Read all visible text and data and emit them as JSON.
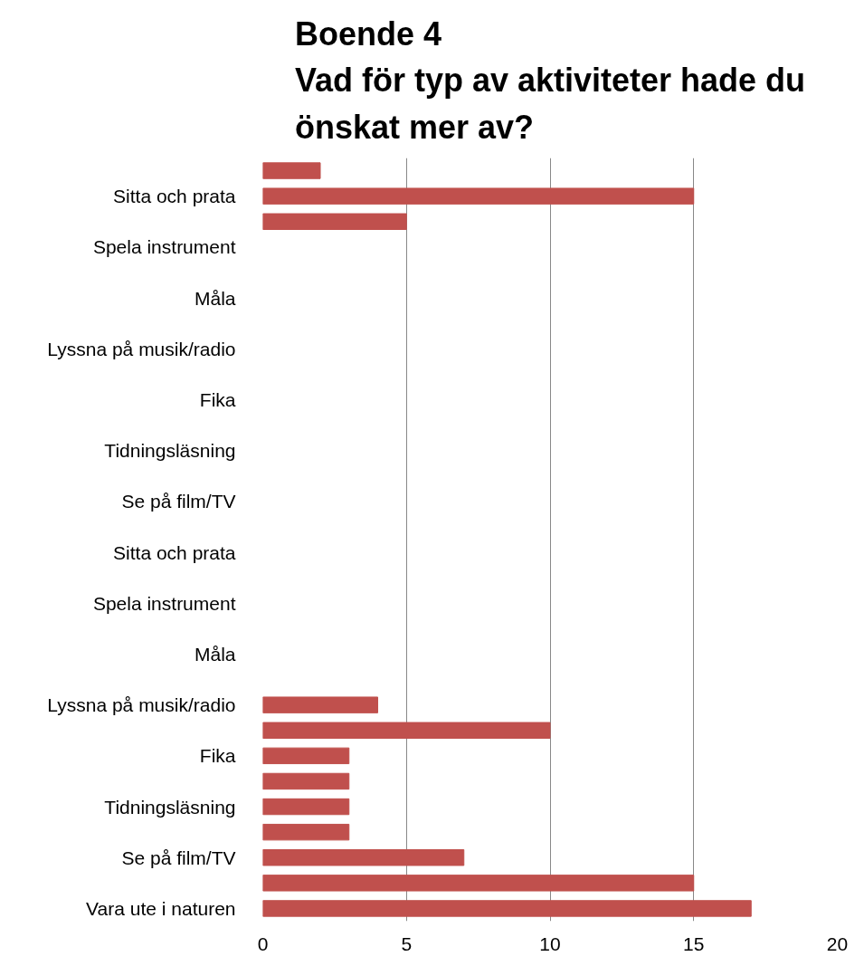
{
  "chart_data": {
    "type": "bar",
    "orientation": "horizontal",
    "title": "Boende 4\nVad för typ av aktiviteter hade du\nönskat mer av?",
    "categories": [
      null,
      "Sitta och prata",
      null,
      "Spela instrument",
      null,
      "Måla",
      null,
      "Lyssna på musik/radio",
      null,
      "Fika",
      null,
      "Tidningsläsning",
      null,
      "Se på film/TV",
      null,
      "Sitta och prata",
      null,
      "Spela instrument",
      null,
      "Måla",
      null,
      "Lyssna på musik/radio",
      null,
      "Fika",
      null,
      "Tidningsläsning",
      null,
      "Se på film/TV",
      null,
      "Vara ute i naturen"
    ],
    "values": [
      2,
      15,
      5,
      null,
      null,
      null,
      null,
      null,
      null,
      null,
      null,
      null,
      null,
      null,
      null,
      null,
      null,
      null,
      null,
      null,
      null,
      4,
      10,
      3,
      3,
      3,
      3,
      7,
      15,
      17
    ],
    "color": "#c0504d",
    "xlim": [
      0,
      20
    ],
    "xticks": [
      0,
      5,
      10,
      15,
      20
    ],
    "grid": "x"
  }
}
